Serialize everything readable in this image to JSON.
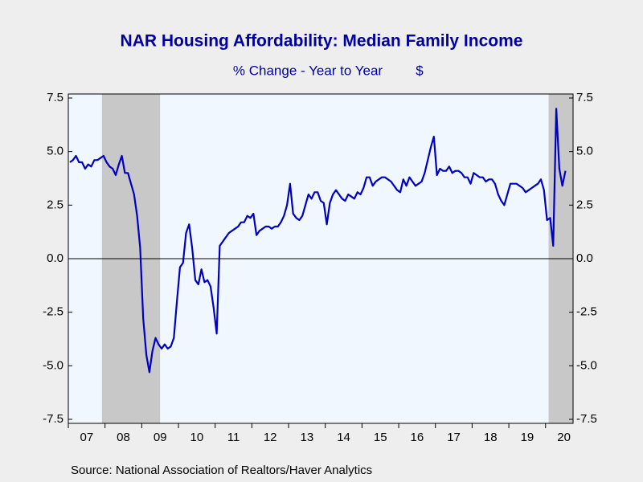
{
  "chart_data": {
    "type": "line",
    "title": "NAR Housing Affordability: Median Family Income",
    "subtitle": "% Change - Year to Year",
    "units": "$",
    "source": "Source:  National Association of Realtors/Haver Analytics",
    "start": "2007-01",
    "frequency": "monthly",
    "series": [
      {
        "name": "Median Family Income",
        "color": "#0000c0",
        "values": [
          4.5,
          4.6,
          4.8,
          4.5,
          4.5,
          4.2,
          4.4,
          4.3,
          4.6,
          4.6,
          4.7,
          4.8,
          4.5,
          4.3,
          4.2,
          3.9,
          4.4,
          4.8,
          4.0,
          4.0,
          3.5,
          3.0,
          2.0,
          0.5,
          -2.8,
          -4.5,
          -5.3,
          -4.3,
          -3.7,
          -4.0,
          -4.2,
          -4.0,
          -4.2,
          -4.1,
          -3.7,
          -2.0,
          -0.4,
          -0.2,
          1.2,
          1.6,
          0.5,
          -1.0,
          -1.2,
          -0.5,
          -1.1,
          -1.0,
          -1.3,
          -2.3,
          -3.5,
          0.6,
          0.8,
          1.0,
          1.2,
          1.3,
          1.4,
          1.5,
          1.7,
          1.7,
          2.0,
          1.9,
          2.1,
          1.1,
          1.3,
          1.4,
          1.5,
          1.5,
          1.4,
          1.5,
          1.5,
          1.7,
          2.0,
          2.5,
          3.5,
          2.1,
          1.9,
          1.8,
          2.0,
          2.5,
          3.0,
          2.8,
          3.1,
          3.1,
          2.7,
          2.6,
          1.6,
          2.6,
          3.0,
          3.2,
          3.0,
          2.8,
          2.7,
          3.0,
          2.9,
          2.8,
          3.1,
          3.0,
          3.3,
          3.8,
          3.8,
          3.4,
          3.6,
          3.7,
          3.8,
          3.8,
          3.7,
          3.6,
          3.4,
          3.2,
          3.1,
          3.7,
          3.4,
          3.8,
          3.6,
          3.4,
          3.5,
          3.6,
          4.0,
          4.6,
          5.2,
          5.7,
          3.9,
          4.2,
          4.1,
          4.1,
          4.3,
          4.0,
          4.1,
          4.1,
          4.0,
          3.8,
          3.8,
          3.5,
          4.0,
          3.9,
          3.8,
          3.8,
          3.6,
          3.7,
          3.7,
          3.5,
          3.0,
          2.7,
          2.5,
          3.0,
          3.5,
          3.5,
          3.5,
          3.4,
          3.3,
          3.1,
          3.2,
          3.3,
          3.4,
          3.5,
          3.7,
          3.2,
          1.8,
          1.9,
          0.6,
          7.0,
          4.2,
          3.4,
          4.1
        ]
      }
    ],
    "shaded_periods": [
      [
        "2007-12",
        "2009-06"
      ],
      [
        "2020-02",
        "2020-09"
      ]
    ],
    "xlim": [
      "2007-01",
      "2020-09"
    ],
    "xticks": [
      {
        "value": 2007,
        "label": "07"
      },
      {
        "value": 2008,
        "label": "08"
      },
      {
        "value": 2009,
        "label": "09"
      },
      {
        "value": 2010,
        "label": "10"
      },
      {
        "value": 2011,
        "label": "11"
      },
      {
        "value": 2012,
        "label": "12"
      },
      {
        "value": 2013,
        "label": "13"
      },
      {
        "value": 2014,
        "label": "14"
      },
      {
        "value": 2015,
        "label": "15"
      },
      {
        "value": 2016,
        "label": "16"
      },
      {
        "value": 2017,
        "label": "17"
      },
      {
        "value": 2018,
        "label": "18"
      },
      {
        "value": 2019,
        "label": "19"
      },
      {
        "value": 2020,
        "label": "20"
      }
    ],
    "ylim": [
      -7.5,
      7.5
    ],
    "yticks": [
      7.5,
      {
        "value": 5,
        "label": "5.0"
      },
      2.5,
      {
        "value": 0,
        "label": "0.0"
      },
      -2.5,
      {
        "value": -5,
        "label": "-5.0"
      },
      -7.5
    ],
    "zero_line": true
  }
}
